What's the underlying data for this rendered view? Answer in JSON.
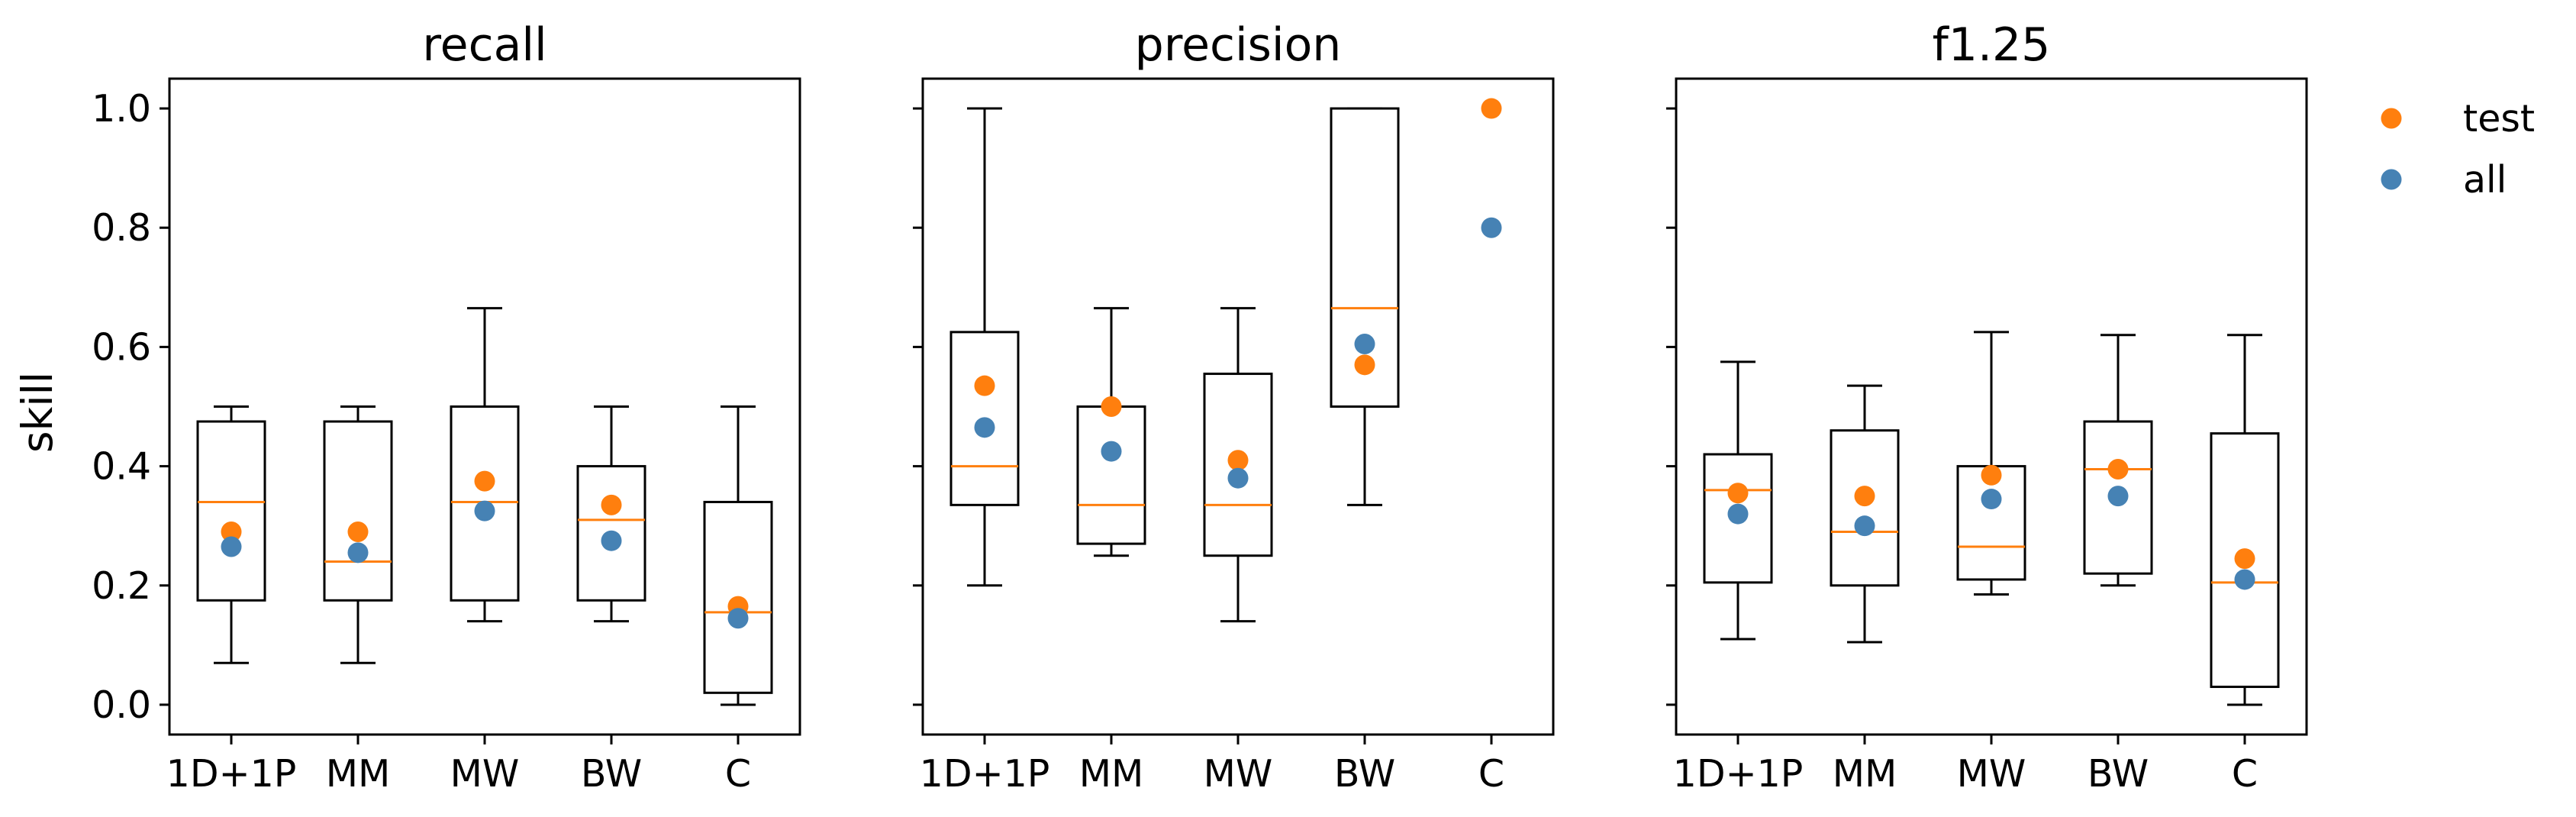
{
  "colors": {
    "test": "#ff7f0e",
    "all": "#4682b4",
    "median": "#ff7f0e",
    "box": "#000000"
  },
  "legend": {
    "entries": [
      {
        "label": "test",
        "color": "#ff7f0e"
      },
      {
        "label": "all",
        "color": "#4682b4"
      }
    ],
    "placement": "upper-right-outside"
  },
  "chart_data": [
    {
      "type": "box",
      "title": "recall",
      "ylabel": "skill",
      "categories": [
        "1D+1P",
        "MM",
        "MW",
        "BW",
        "C"
      ],
      "ylim": [
        -0.05,
        1.05
      ],
      "yticks": [
        "0.0",
        "0.2",
        "0.4",
        "0.6",
        "0.8",
        "1.0"
      ],
      "boxes": [
        {
          "whislo": 0.07,
          "q1": 0.175,
          "med": 0.34,
          "q3": 0.475,
          "whishi": 0.5
        },
        {
          "whislo": 0.07,
          "q1": 0.175,
          "med": 0.24,
          "q3": 0.475,
          "whishi": 0.5
        },
        {
          "whislo": 0.14,
          "q1": 0.175,
          "med": 0.34,
          "q3": 0.5,
          "whishi": 0.665
        },
        {
          "whislo": 0.14,
          "q1": 0.175,
          "med": 0.31,
          "q3": 0.4,
          "whishi": 0.5
        },
        {
          "whislo": 0.0,
          "q1": 0.02,
          "med": 0.155,
          "q3": 0.34,
          "whishi": 0.5
        }
      ],
      "series": [
        {
          "name": "test",
          "values": [
            0.29,
            0.29,
            0.375,
            0.335,
            0.165
          ]
        },
        {
          "name": "all",
          "values": [
            0.265,
            0.255,
            0.325,
            0.275,
            0.145
          ]
        }
      ]
    },
    {
      "type": "box",
      "title": "precision",
      "categories": [
        "1D+1P",
        "MM",
        "MW",
        "BW",
        "C"
      ],
      "ylim": [
        -0.05,
        1.05
      ],
      "boxes": [
        {
          "whislo": 0.2,
          "q1": 0.335,
          "med": 0.4,
          "q3": 0.625,
          "whishi": 1.0
        },
        {
          "whislo": 0.25,
          "q1": 0.27,
          "med": 0.335,
          "q3": 0.5,
          "whishi": 0.665
        },
        {
          "whislo": 0.14,
          "q1": 0.25,
          "med": 0.335,
          "q3": 0.555,
          "whishi": 0.665
        },
        {
          "whislo": 0.335,
          "q1": 0.5,
          "med": 0.665,
          "q3": 1.0,
          "whishi": 1.0
        },
        null
      ],
      "series": [
        {
          "name": "test",
          "values": [
            0.535,
            0.5,
            0.41,
            0.57,
            1.0
          ]
        },
        {
          "name": "all",
          "values": [
            0.465,
            0.425,
            0.38,
            0.605,
            0.8
          ]
        }
      ]
    },
    {
      "type": "box",
      "title": "f1.25",
      "categories": [
        "1D+1P",
        "MM",
        "MW",
        "BW",
        "C"
      ],
      "ylim": [
        -0.05,
        1.05
      ],
      "boxes": [
        {
          "whislo": 0.11,
          "q1": 0.205,
          "med": 0.36,
          "q3": 0.42,
          "whishi": 0.575
        },
        {
          "whislo": 0.105,
          "q1": 0.2,
          "med": 0.29,
          "q3": 0.46,
          "whishi": 0.535
        },
        {
          "whislo": 0.185,
          "q1": 0.21,
          "med": 0.265,
          "q3": 0.4,
          "whishi": 0.625
        },
        {
          "whislo": 0.2,
          "q1": 0.22,
          "med": 0.395,
          "q3": 0.475,
          "whishi": 0.62
        },
        {
          "whislo": 0.0,
          "q1": 0.03,
          "med": 0.205,
          "q3": 0.455,
          "whishi": 0.62
        }
      ],
      "series": [
        {
          "name": "test",
          "values": [
            0.355,
            0.35,
            0.385,
            0.395,
            0.245
          ]
        },
        {
          "name": "all",
          "values": [
            0.32,
            0.3,
            0.345,
            0.35,
            0.21
          ]
        }
      ]
    }
  ]
}
